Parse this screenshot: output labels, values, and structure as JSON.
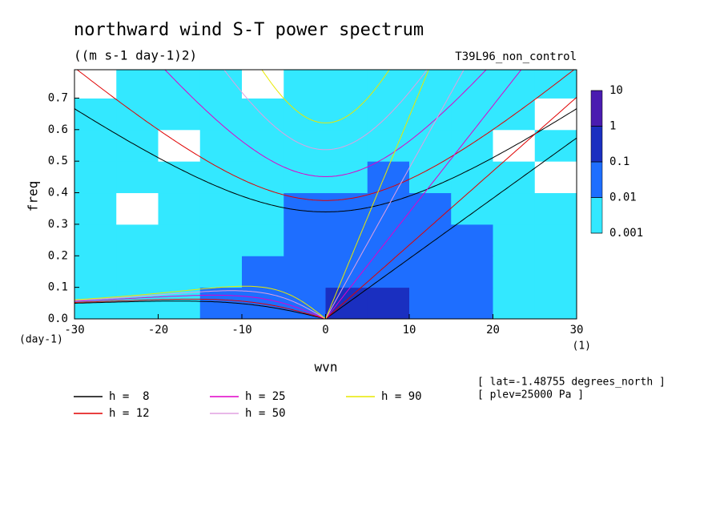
{
  "chart_data": {
    "type": "spectrum",
    "title": "northward wind S-T power spectrum",
    "subtitle": "((m s-1 day-1)2)",
    "run_label": "T39L96_non_control",
    "x_label": "wvn",
    "y_label": "freq",
    "y_unit": "(day-1)",
    "x_unit": "(1)",
    "annotations": [
      "[ lat=-1.48755 degrees_north ]",
      "[ plev=25000 Pa ]"
    ],
    "xlim": [
      -30,
      30
    ],
    "ylim": [
      0,
      0.79
    ],
    "xticks": [
      -30,
      -20,
      -10,
      0,
      10,
      20,
      30
    ],
    "yticks": [
      {
        "value": 0,
        "label": "0.0"
      },
      0.1,
      0.2,
      0.3,
      0.4,
      0.5,
      0.6,
      0.7
    ],
    "xbins": [
      -30,
      -25,
      -20,
      -15,
      -10,
      -5,
      0,
      5,
      10,
      15,
      20,
      25,
      30
    ],
    "ybins": [
      0,
      0.1,
      0.2,
      0.3,
      0.4,
      0.5,
      0.6,
      0.7,
      0.8
    ],
    "z": [
      [
        0.005,
        0.005,
        0.005,
        0.02,
        0.02,
        0.05,
        0.2,
        0.2,
        0.05,
        0.02,
        0.005,
        0.005
      ],
      [
        0.005,
        0.005,
        0.005,
        0.005,
        0.02,
        0.05,
        0.05,
        0.05,
        0.05,
        0.02,
        0.005,
        0.005
      ],
      [
        0.005,
        0.005,
        0.005,
        0.005,
        0.005,
        0.02,
        0.05,
        0.05,
        0.02,
        0.02,
        0.005,
        0.005
      ],
      [
        0.005,
        0.0005,
        0.005,
        0.005,
        0.005,
        0.02,
        0.02,
        0.05,
        0.02,
        0.005,
        0.005,
        0.005
      ],
      [
        0.005,
        0.005,
        0.005,
        0.005,
        0.005,
        0.005,
        0.005,
        0.02,
        0.005,
        0.005,
        0.005,
        0.0005
      ],
      [
        0.005,
        0.005,
        0.0005,
        0.005,
        0.005,
        0.005,
        0.005,
        0.005,
        0.005,
        0.005,
        0.0005,
        0.005
      ],
      [
        0.005,
        0.005,
        0.005,
        0.005,
        0.005,
        0.005,
        0.005,
        0.005,
        0.005,
        0.005,
        0.005,
        0.0005
      ],
      [
        0.0005,
        0.005,
        0.005,
        0.005,
        0.0005,
        0.005,
        0.005,
        0.005,
        0.005,
        0.005,
        0.005,
        0.005
      ]
    ],
    "levels": [
      0.001,
      0.01,
      0.1,
      1,
      10
    ],
    "level_colors": [
      "#33e8ff",
      "#1e6eff",
      "#1a2fc0",
      "#4a1cb0"
    ],
    "series": [
      {
        "name": "h =  8",
        "h": 8,
        "color": "#000000"
      },
      {
        "name": "h = 12",
        "h": 12,
        "color": "#e00000"
      },
      {
        "name": "h = 25",
        "h": 25,
        "color": "#e000c8"
      },
      {
        "name": "h = 50",
        "h": 50,
        "color": "#e0a0e0"
      },
      {
        "name": "h = 90",
        "h": 90,
        "color": "#e8e800"
      }
    ]
  }
}
